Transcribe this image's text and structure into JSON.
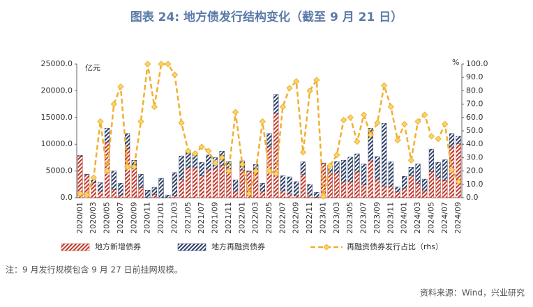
{
  "chart_data": {
    "type": "bar",
    "title": "图表 24: 地方债发行结构变化（截至 9 月 21 日）",
    "y_unit": "亿元",
    "y2_unit": "%",
    "note": "注：9 月发行规模包含 9 月 27 日前挂网规模。",
    "source": "资料来源：Wind，兴业研究",
    "stacked": true,
    "legend": "bottom",
    "categories": [
      "2020/01",
      null,
      "2020/03",
      null,
      "2020/05",
      null,
      "2020/07",
      null,
      "2020/09",
      null,
      "2020/11",
      null,
      "2021/01",
      null,
      "2021/03",
      null,
      "2021/05",
      null,
      "2021/07",
      null,
      "2021/09",
      null,
      "2021/11",
      null,
      "2022/01",
      null,
      "2022/03",
      null,
      "2022/05",
      null,
      "2022/07",
      null,
      "2022/09",
      null,
      "2022/11",
      null,
      "2023/01",
      null,
      "2023/03",
      null,
      "2023/05",
      null,
      "2023/07",
      null,
      "2023/09",
      null,
      "2023/11",
      null,
      "2024/01",
      null,
      "2024/03",
      null,
      "2024/05",
      null,
      "2024/07",
      null,
      "2024/09"
    ],
    "series": [
      {
        "name": "地方新增债券",
        "type": "bar",
        "color": "#c0392b",
        "values": [
          7700,
          4300,
          2800,
          1200,
          10400,
          1500,
          500,
          9200,
          5400,
          1900,
          0,
          600,
          0,
          0,
          400,
          3400,
          5600,
          5600,
          4100,
          5200,
          5500,
          6100,
          5400,
          1200,
          5200,
          4900,
          5000,
          1200,
          9600,
          15800,
          1300,
          700,
          400,
          4400,
          500,
          100,
          6400,
          4600,
          4600,
          2900,
          3000,
          4800,
          2400,
          6900,
          3400,
          2200,
          2100,
          1100,
          1800,
          4100,
          2700,
          1300,
          4900,
          3700,
          3200,
          9500,
          10100
        ]
      },
      {
        "name": "地方再融资债券",
        "type": "bar",
        "color": "#2c3e66",
        "values": [
          200,
          100,
          500,
          1600,
          2600,
          3500,
          2200,
          2800,
          1600,
          2500,
          1400,
          1300,
          3600,
          500,
          4300,
          4400,
          3000,
          2700,
          2500,
          2800,
          2000,
          2600,
          1400,
          2100,
          1700,
          100,
          1200,
          1500,
          2400,
          3500,
          2800,
          3200,
          2600,
          2300,
          2000,
          900,
          100,
          1500,
          2200,
          4100,
          4600,
          3400,
          3900,
          6100,
          4300,
          11700,
          4600,
          900,
          2200,
          1600,
          3600,
          2200,
          4200,
          2900,
          3900,
          2500,
          1400
        ]
      },
      {
        "name": "再融资债券发行占比（rhs）",
        "type": "line",
        "axis": "y2",
        "color": "#f0b030",
        "values": [
          3,
          2,
          15,
          57,
          20,
          70,
          83,
          23,
          23,
          57,
          100,
          68,
          100,
          100,
          92,
          56,
          35,
          33,
          38,
          35,
          26,
          30,
          20,
          64,
          25,
          3,
          20,
          57,
          20,
          18,
          68,
          82,
          87,
          34,
          80,
          88,
          1,
          24,
          32,
          58,
          60,
          42,
          62,
          47,
          56,
          84,
          68,
          43,
          55,
          28,
          57,
          62,
          46,
          44,
          55,
          21,
          12
        ]
      }
    ],
    "ylim": [
      0,
      25000
    ],
    "yticks": [
      {
        "value": 0,
        "label": "0.0"
      },
      {
        "value": 5000,
        "label": "5000.0"
      },
      {
        "value": 10000,
        "label": "10000.0"
      },
      {
        "value": 15000,
        "label": "15000.0"
      },
      {
        "value": 20000,
        "label": "20000.0"
      },
      {
        "value": 25000,
        "label": "25000.0"
      }
    ],
    "y2lim": [
      0,
      100
    ],
    "y2ticks": [
      {
        "value": 0,
        "label": "0.0"
      },
      {
        "value": 10,
        "label": "10.0"
      },
      {
        "value": 20,
        "label": "20.0"
      },
      {
        "value": 30,
        "label": "30.0"
      },
      {
        "value": 40,
        "label": "40.0"
      },
      {
        "value": 50,
        "label": "50.0"
      },
      {
        "value": 60,
        "label": "60.0"
      },
      {
        "value": 70,
        "label": "70.0"
      },
      {
        "value": 80,
        "label": "80.0"
      },
      {
        "value": 90,
        "label": "90.0"
      },
      {
        "value": 100,
        "label": "100.0"
      }
    ]
  }
}
